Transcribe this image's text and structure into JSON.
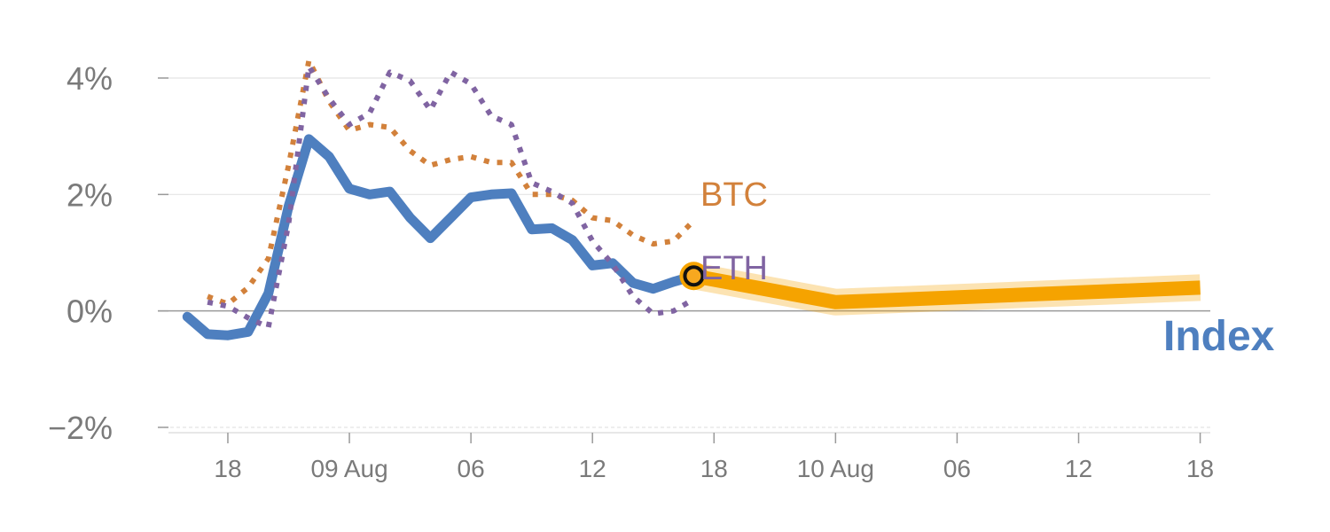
{
  "chart_data": {
    "type": "line",
    "title": "",
    "xlabel": "",
    "ylabel": "",
    "ylim": [
      -2,
      4
    ],
    "y_ticks": [
      {
        "value": 4,
        "label": "4%"
      },
      {
        "value": 2,
        "label": "2%"
      },
      {
        "value": 0,
        "label": "0%"
      },
      {
        "value": -2,
        "label": "−2%"
      }
    ],
    "x_ticks": [
      "18",
      "09 Aug",
      "06",
      "12",
      "18",
      "10 Aug",
      "06",
      "12",
      "18"
    ],
    "x_tick_hours": [
      18,
      24,
      30,
      36,
      42,
      48,
      54,
      60,
      66
    ],
    "xlim": [
      15.2,
      66.5
    ],
    "grid": true,
    "series": [
      {
        "name": "Index",
        "color": "#4e7fbf",
        "style": "solid",
        "x": [
          16,
          17,
          18,
          19,
          20,
          21,
          22,
          23,
          24,
          25,
          26,
          27,
          28,
          29,
          30,
          31,
          32,
          33,
          34,
          35,
          36,
          37,
          38,
          39,
          40,
          41
        ],
        "values": [
          -0.1,
          -0.4,
          -0.42,
          -0.36,
          0.3,
          1.8,
          2.95,
          2.65,
          2.1,
          2.0,
          2.05,
          1.6,
          1.25,
          1.6,
          1.95,
          2.0,
          2.02,
          1.4,
          1.42,
          1.22,
          0.78,
          0.82,
          0.48,
          0.38,
          0.5,
          0.6
        ]
      },
      {
        "name": "BTC",
        "color": "#d2813b",
        "style": "dotted",
        "x": [
          17,
          18,
          19,
          20,
          21,
          22,
          23,
          24,
          25,
          26,
          27,
          28,
          29,
          30,
          31,
          32,
          33,
          34,
          35,
          36,
          37,
          38,
          39,
          40,
          41
        ],
        "values": [
          0.25,
          0.12,
          0.4,
          0.9,
          2.5,
          4.3,
          3.6,
          3.1,
          3.2,
          3.15,
          2.75,
          2.5,
          2.6,
          2.65,
          2.55,
          2.55,
          2.0,
          2.0,
          1.9,
          1.6,
          1.55,
          1.3,
          1.15,
          1.2,
          1.55
        ]
      },
      {
        "name": "ETH",
        "color": "#8064a2",
        "style": "dotted",
        "x": [
          17,
          18,
          19,
          20,
          21,
          22,
          23,
          24,
          25,
          26,
          27,
          28,
          29,
          30,
          31,
          32,
          33,
          34,
          35,
          36,
          37,
          38,
          39,
          40,
          41
        ],
        "values": [
          0.15,
          0.08,
          -0.12,
          -0.28,
          1.5,
          4.2,
          3.65,
          3.2,
          3.4,
          4.1,
          3.95,
          3.45,
          4.1,
          3.9,
          3.35,
          3.2,
          2.2,
          2.05,
          1.85,
          1.2,
          0.8,
          0.25,
          -0.05,
          0.0,
          0.2
        ]
      },
      {
        "name": "",
        "color": "#f5a300",
        "style": "forecast-band",
        "x": [
          41,
          48,
          66
        ],
        "values": [
          0.6,
          0.15,
          0.4
        ]
      }
    ],
    "current_point": {
      "x": 41,
      "y": 0.6
    }
  },
  "labels": {
    "btc": "BTC",
    "eth": "ETH",
    "index": "Index"
  },
  "colors": {
    "index": "#4e7fbf",
    "btc": "#d2813b",
    "eth": "#8064a2",
    "forecast": "#f5a300",
    "grid": "#e4e4e4",
    "zero_line": "#9a9a9a",
    "tick_text": "#7a7a7a"
  }
}
